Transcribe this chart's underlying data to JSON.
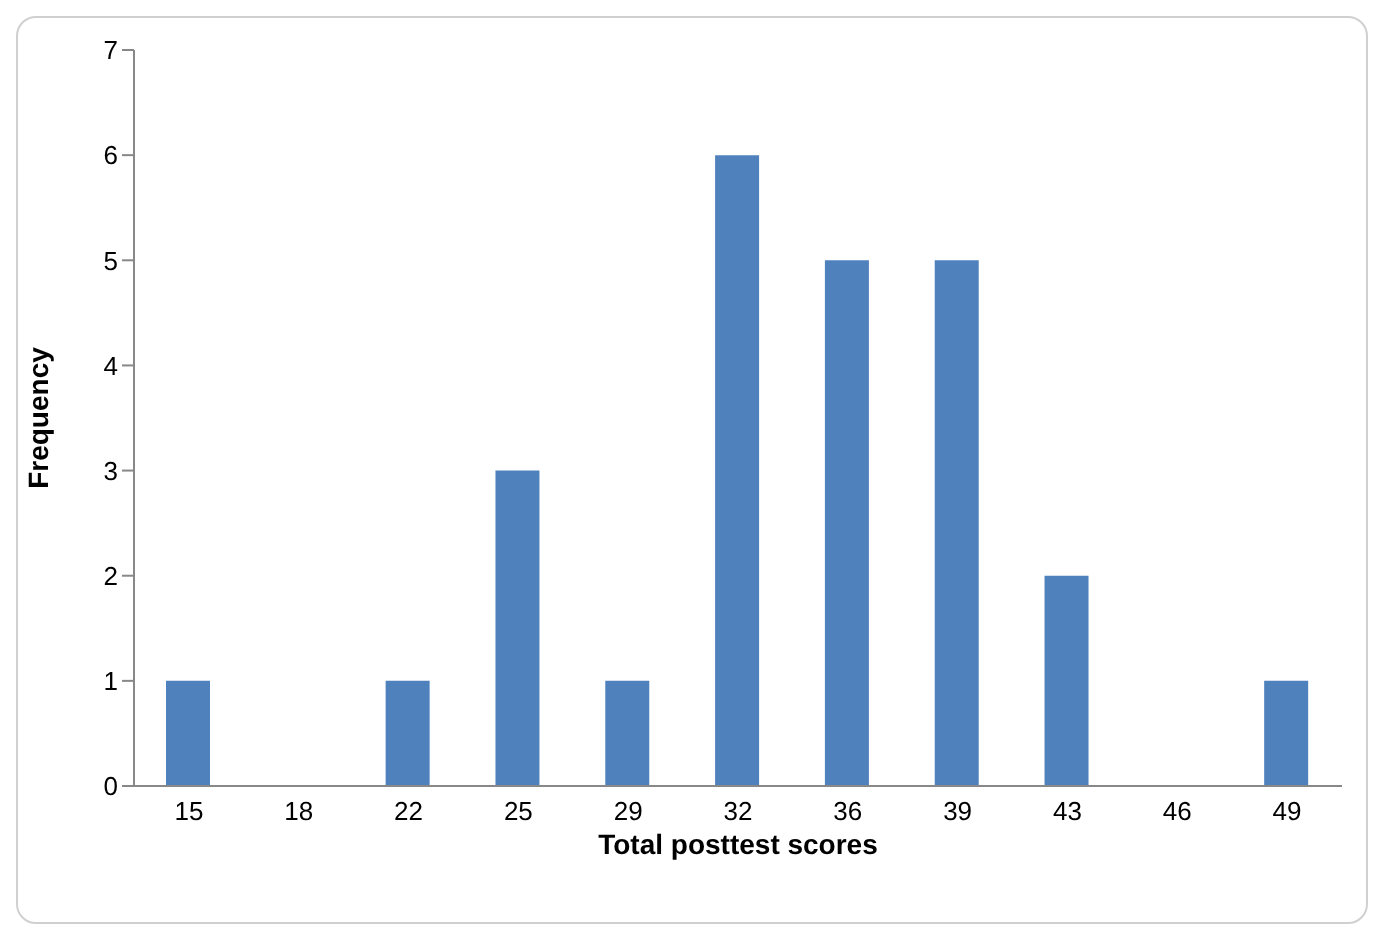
{
  "chart_data": {
    "type": "bar",
    "xlabel": "Total posttest scores",
    "ylabel": "Frequency",
    "categories": [
      "15",
      "18",
      "22",
      "25",
      "29",
      "32",
      "36",
      "39",
      "43",
      "46",
      "49"
    ],
    "values": [
      1,
      0,
      1,
      3,
      1,
      6,
      5,
      5,
      2,
      0,
      1
    ],
    "color": "#4f81bd",
    "ylim": [
      0,
      7
    ],
    "yticks": [
      0,
      1,
      2,
      3,
      4,
      5,
      6,
      7
    ],
    "grid": false,
    "legend": false
  }
}
